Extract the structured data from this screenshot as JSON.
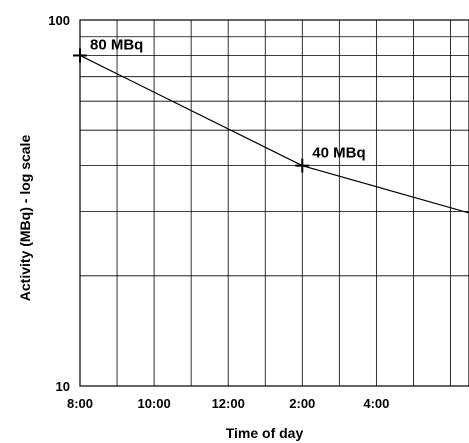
{
  "chart_data": {
    "type": "line",
    "xlabel": "Time of day",
    "ylabel": "Activity (MBq) - log scale",
    "y_scale": "log",
    "ylim": [
      10,
      100
    ],
    "x_range_hours": [
      8,
      18.5
    ],
    "x_ticks": [
      {
        "label": "8:00",
        "hour": 8
      },
      {
        "label": "10:00",
        "hour": 10
      },
      {
        "label": "12:00",
        "hour": 12
      },
      {
        "label": "2:00",
        "hour": 14
      },
      {
        "label": "4:00",
        "hour": 16
      }
    ],
    "y_ticks": [
      {
        "label": "10",
        "value": 10
      },
      {
        "label": "100",
        "value": 100
      }
    ],
    "grid": true,
    "series": [
      {
        "points": [
          {
            "hour": 8,
            "value": 80
          },
          {
            "hour": 14,
            "value": 40
          },
          {
            "hour": 18.5,
            "value": 29.7
          }
        ]
      }
    ],
    "annotations": [
      {
        "text": "80 MBq",
        "hour": 8,
        "value": 80
      },
      {
        "text": "40 MBq",
        "hour": 14,
        "value": 40
      }
    ]
  }
}
